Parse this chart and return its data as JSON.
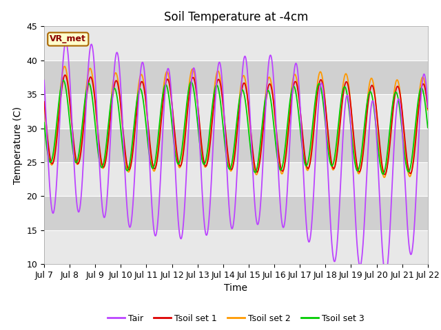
{
  "title": "Soil Temperature at -4cm",
  "xlabel": "Time",
  "ylabel": "Temperature (C)",
  "ylim": [
    10,
    45
  ],
  "x_tick_labels": [
    "Jul 7",
    "Jul 8",
    "Jul 9",
    "Jul 10",
    "Jul 11",
    "Jul 12",
    "Jul 13",
    "Jul 14",
    "Jul 15",
    "Jul 16",
    "Jul 17",
    "Jul 18",
    "Jul 19",
    "Jul 20",
    "Jul 21",
    "Jul 22"
  ],
  "bg_color": "#d8d8d8",
  "fig_bg": "#ffffff",
  "annotation_text": "VR_met",
  "annotation_box_color": "#ffffcc",
  "annotation_border_color": "#aa6600",
  "legend_entries": [
    "Tair",
    "Tsoil set 1",
    "Tsoil set 2",
    "Tsoil set 3"
  ],
  "line_colors": [
    "#bb44ff",
    "#dd0000",
    "#ff9900",
    "#00cc00"
  ],
  "title_fontsize": 12,
  "axis_label_fontsize": 10,
  "tick_fontsize": 9,
  "yticks": [
    10,
    15,
    20,
    25,
    30,
    35,
    40,
    45
  ],
  "band_colors": [
    "#c8c8c8",
    "#e0e0e0"
  ]
}
